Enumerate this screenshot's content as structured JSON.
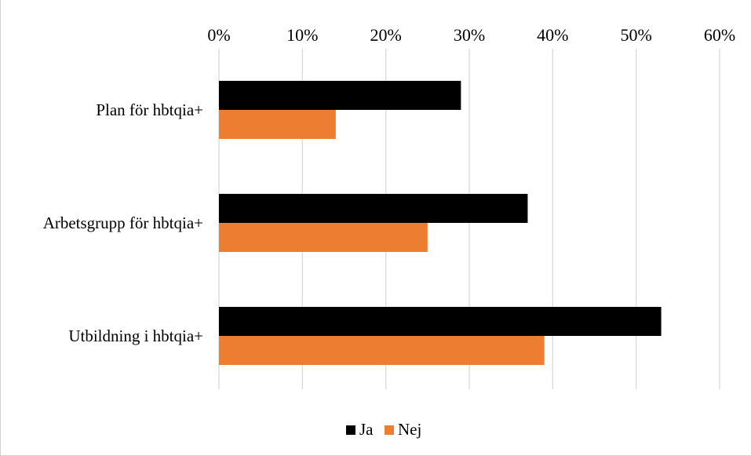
{
  "chart_data": {
    "type": "bar",
    "orientation": "horizontal",
    "title": "",
    "xlabel": "",
    "ylabel": "",
    "categories": [
      "Plan för hbtqia+",
      "Arbetsgrupp för hbtqia+",
      "Utbildning i hbtqia+"
    ],
    "series": [
      {
        "name": "Ja",
        "color": "#000000",
        "values": [
          29,
          37,
          53
        ]
      },
      {
        "name": "Nej",
        "color": "#ed7d31",
        "values": [
          14,
          25,
          39
        ]
      }
    ],
    "xlim": [
      0,
      60
    ],
    "x_ticks": [
      0,
      10,
      20,
      30,
      40,
      50,
      60
    ],
    "x_tick_labels": [
      "0%",
      "10%",
      "20%",
      "30%",
      "40%",
      "50%",
      "60%"
    ],
    "x_axis_position": "top",
    "grid": true,
    "legend_position": "bottom"
  }
}
